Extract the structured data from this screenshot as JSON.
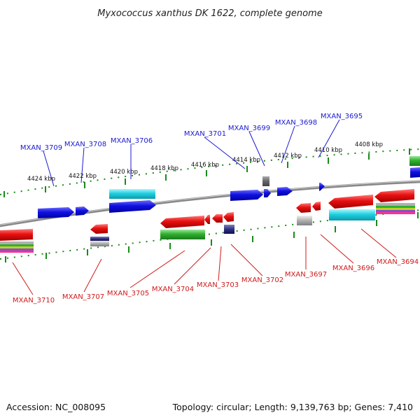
{
  "title": "Myxococcus xanthus DK 1622, complete genome",
  "footer": {
    "accession": "Accession: NC_008095",
    "info": "Topology: circular; Length: 9,139,763 bp; Genes: 7,410"
  },
  "scale_labels": [
    "4424 kbp",
    "4422 kbp",
    "4420 kbp",
    "4418 kbp",
    "4416 kbp",
    "4414 kbp",
    "4412 kbp",
    "4410 kbp",
    "4408 kbp"
  ],
  "genes_top": [
    "MXAN_3709",
    "MXAN_3708",
    "MXAN_3706",
    "MXAN_3701",
    "MXAN_3699",
    "MXAN_3698",
    "MXAN_3695"
  ],
  "genes_bottom": [
    "MXAN_3710",
    "MXAN_3707",
    "MXAN_3705",
    "MXAN_3704",
    "MXAN_3703",
    "MXAN_3702",
    "MXAN_3697",
    "MXAN_3696",
    "MXAN_3694"
  ],
  "colors": {
    "forward": "#1010e0",
    "reverse": "#e01010",
    "cyan": "#20d0e0",
    "green": "#30b030",
    "backbone": "#777777",
    "tick": "#1a8a1a",
    "label_top": "#1a1ad0",
    "label_bottom": "#d01a1a"
  }
}
